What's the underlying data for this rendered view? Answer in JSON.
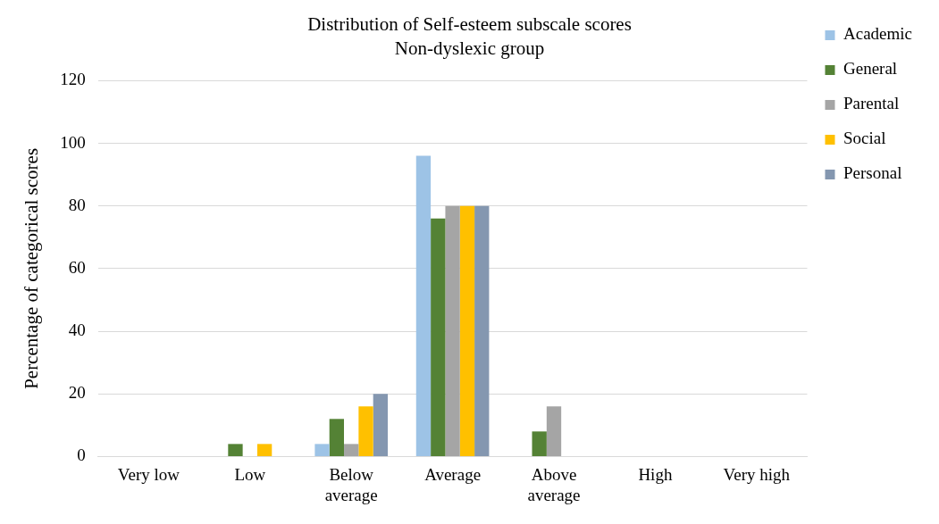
{
  "chart_data": {
    "type": "bar",
    "title": "Distribution of Self-esteem subscale scores",
    "subtitle": "Non-dyslexic group",
    "ylabel": "Percentage of categorical scores",
    "categories": [
      "Very low",
      "Low",
      "Below average",
      "Average",
      "Above average",
      "High",
      "Very high"
    ],
    "series": [
      {
        "name": "Academic",
        "color": "#9dc3e6",
        "values": [
          0,
          0,
          4,
          96,
          0,
          0,
          0
        ]
      },
      {
        "name": "General",
        "color": "#548235",
        "values": [
          0,
          4,
          12,
          76,
          8,
          0,
          0
        ]
      },
      {
        "name": "Parental",
        "color": "#a5a5a5",
        "values": [
          0,
          0,
          4,
          80,
          16,
          0,
          0
        ]
      },
      {
        "name": "Social",
        "color": "#ffc000",
        "values": [
          0,
          4,
          16,
          80,
          0,
          0,
          0
        ]
      },
      {
        "name": "Personal",
        "color": "#8497b0",
        "values": [
          0,
          0,
          20,
          80,
          0,
          0,
          0
        ]
      }
    ],
    "ylim": [
      0,
      120
    ],
    "yticks": [
      0,
      20,
      40,
      60,
      80,
      100,
      120
    ],
    "grid": "y",
    "legend": "right"
  }
}
